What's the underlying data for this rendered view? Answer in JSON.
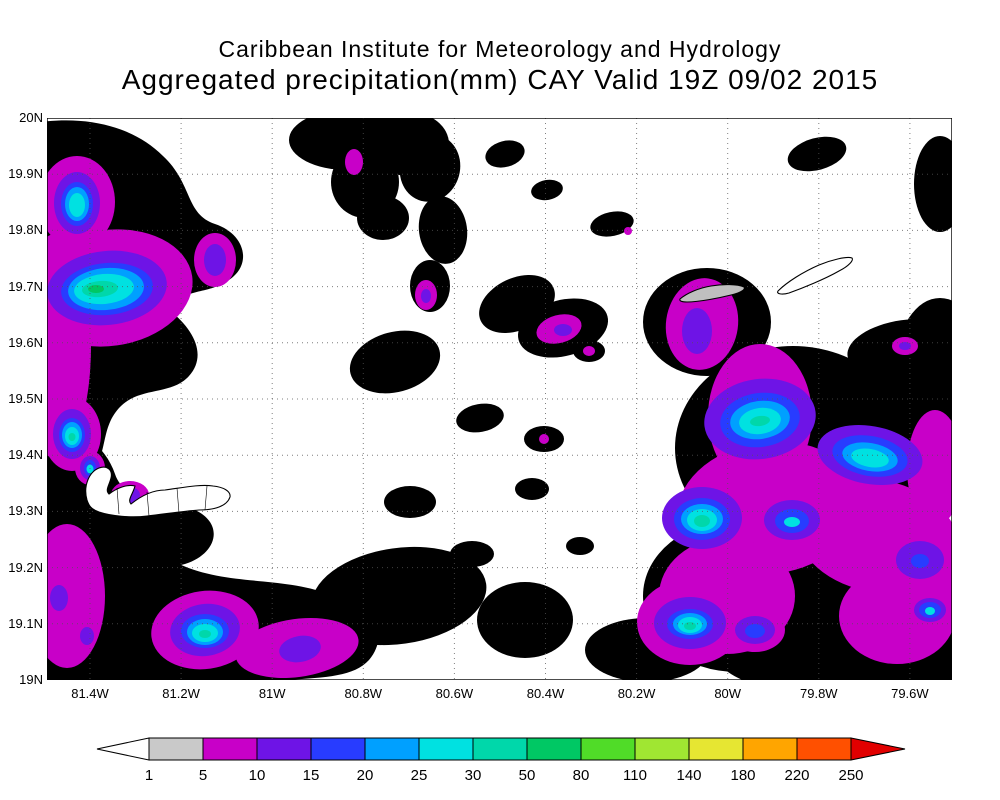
{
  "title": {
    "line1": "Caribbean Institute for Meteorology and Hydrology",
    "line2": "Aggregated precipitation(mm) CAY Valid 19Z 09/02 2015"
  },
  "map": {
    "y_ticks": [
      "20N",
      "19.9N",
      "19.8N",
      "19.7N",
      "19.6N",
      "19.5N",
      "19.4N",
      "19.3N",
      "19.2N",
      "19.1N",
      "19N"
    ],
    "x_ticks": [
      "81.4W",
      "81.2W",
      "81W",
      "80.8W",
      "80.6W",
      "80.4W",
      "80.2W",
      "80W",
      "79.8W",
      "79.6W"
    ]
  },
  "colorbar": {
    "labels": [
      "1",
      "5",
      "10",
      "15",
      "20",
      "25",
      "30",
      "50",
      "80",
      "110",
      "140",
      "180",
      "220",
      "250"
    ],
    "segment_colors": [
      "#c9c9c9",
      "#c800c8",
      "#6e14e6",
      "#283cff",
      "#00a0ff",
      "#00e1e1",
      "#00d7aa",
      "#00c864",
      "#50dc28",
      "#a0e632",
      "#e6e632",
      "#ffa500",
      "#ff5000"
    ],
    "arrow_left_color": "#ffffff",
    "arrow_right_color": "#e10000"
  },
  "palette": {
    "gray": "#c9c9c9",
    "magenta": "#c800c8",
    "violet": "#6e14e6",
    "blue": "#283cff",
    "azure": "#00a0ff",
    "cyan": "#00e1e1",
    "teal": "#00d7aa",
    "green": "#00c864"
  }
}
